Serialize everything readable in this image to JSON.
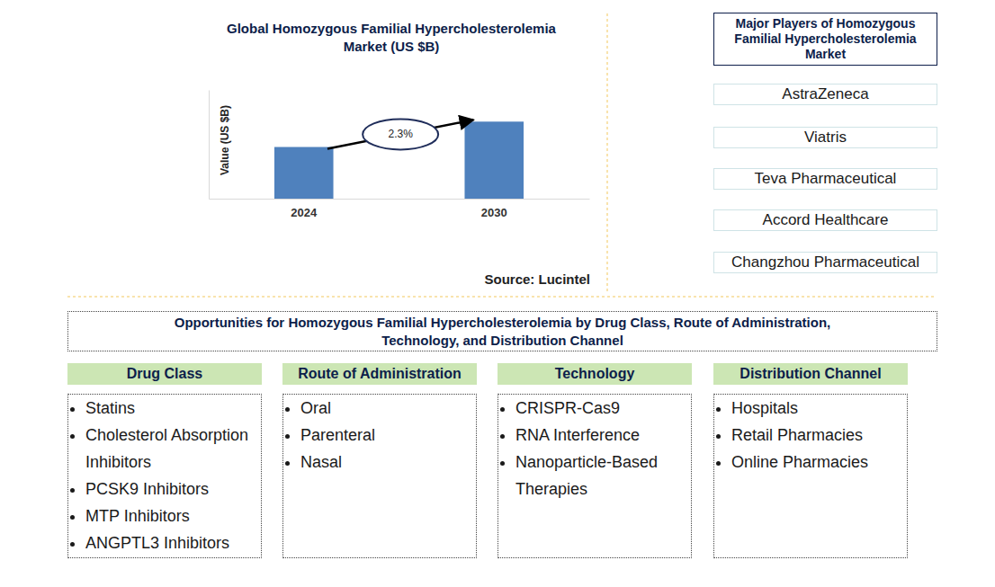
{
  "chart_data": {
    "type": "bar",
    "title": "Global Homozygous Familial Hypercholesterolemia Market (US $B)",
    "y_label": "Value (US $B)",
    "categories": [
      "2024",
      "2030"
    ],
    "values": [
      0.57,
      0.85
    ],
    "color": "#4f81bd",
    "ylim": [
      0,
      1.2
    ],
    "yticks": [],
    "tick_labels": "x",
    "annotations": [
      "2.3%"
    ],
    "source": "Source: Lucintel"
  },
  "major_players": {
    "title": "Major Players of Homozygous Familial Hypercholesterolemia Market",
    "items": [
      "AstraZeneca",
      "Viatris",
      "Teva Pharmaceutical",
      "Accord Healthcare",
      "Changzhou Pharmaceutical"
    ]
  },
  "opportunities": {
    "title": "Opportunities for Homozygous Familial Hypercholesterolemia by Drug Class, Route of Administration, Technology, and Distribution Channel",
    "columns": [
      {
        "header": "Drug Class",
        "items": [
          "Statins",
          "Cholesterol Absorption Inhibitors",
          "PCSK9 Inhibitors",
          "MTP Inhibitors",
          "ANGPTL3 Inhibitors"
        ]
      },
      {
        "header": "Route of Administration",
        "items": [
          "Oral",
          "Parenteral",
          "Nasal"
        ]
      },
      {
        "header": "Technology",
        "items": [
          "CRISPR-Cas9",
          "RNA Interference",
          "Nanoparticle-Based Therapies"
        ]
      },
      {
        "header": "Distribution Channel",
        "items": [
          "Hospitals",
          "Retail Pharmacies",
          "Online Pharmacies"
        ]
      }
    ]
  }
}
